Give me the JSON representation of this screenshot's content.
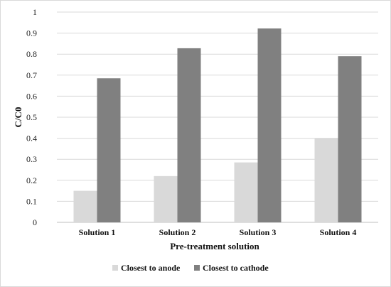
{
  "chart_data": {
    "type": "bar",
    "title": "",
    "xlabel": "Pre-treatment solution",
    "ylabel": "C/C0",
    "ylim": [
      0,
      1
    ],
    "yticks": [
      "0",
      "0.1",
      "0.2",
      "0.3",
      "0.4",
      "0.5",
      "0.6",
      "0.7",
      "0.8",
      "0.9",
      "1"
    ],
    "categories": [
      "Solution 1",
      "Solution 2",
      "Solution 3",
      "Solution 4"
    ],
    "series": [
      {
        "name": "Closest to anode",
        "color": "#d9d9d9",
        "values": [
          0.15,
          0.22,
          0.285,
          0.4
        ]
      },
      {
        "name": "Closest to cathode",
        "color": "#808080",
        "values": [
          0.685,
          0.828,
          0.922,
          0.79
        ]
      }
    ],
    "grid": true,
    "legend_position": "bottom"
  }
}
